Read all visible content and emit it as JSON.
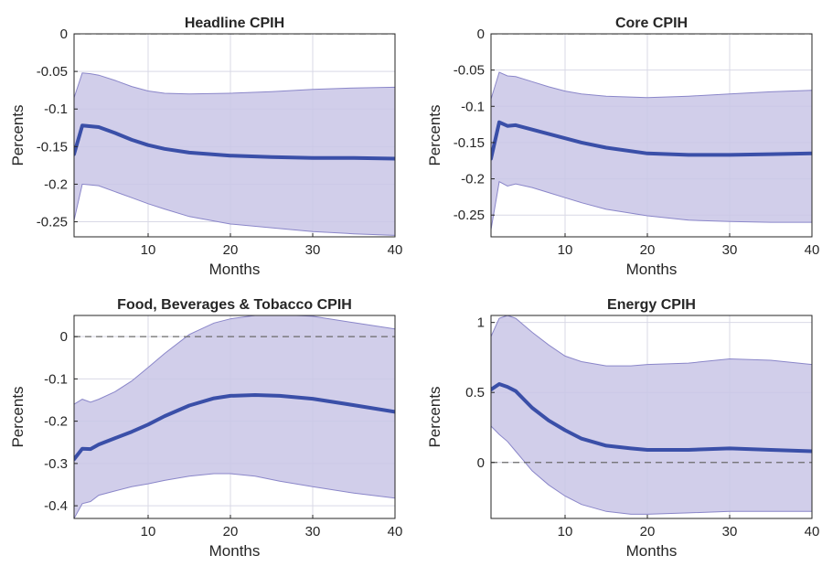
{
  "chart_data": [
    {
      "type": "line",
      "title": "Headline CPIH",
      "xlabel": "Months",
      "ylabel": "Percents",
      "xlim": [
        1,
        40
      ],
      "ylim": [
        -0.27,
        0
      ],
      "xticks": [
        10,
        20,
        30,
        40
      ],
      "xtick_labels": [
        "10",
        "20",
        "30",
        "40"
      ],
      "yticks": [
        0,
        -0.05,
        -0.1,
        -0.15,
        -0.2,
        -0.25
      ],
      "ytick_labels": [
        "0",
        "-0.05",
        "-0.1",
        "-0.15",
        "-0.2",
        "-0.25"
      ],
      "grid": true,
      "reference_line": 0,
      "x": [
        1,
        2,
        3,
        4,
        6,
        8,
        10,
        12,
        15,
        20,
        25,
        30,
        35,
        40
      ],
      "series": [
        {
          "role": "median",
          "values": [
            -0.16,
            -0.122,
            -0.123,
            -0.124,
            -0.132,
            -0.141,
            -0.148,
            -0.153,
            -0.158,
            -0.162,
            -0.164,
            -0.165,
            -0.165,
            -0.166
          ]
        },
        {
          "role": "upper",
          "values": [
            -0.085,
            -0.052,
            -0.053,
            -0.055,
            -0.062,
            -0.07,
            -0.076,
            -0.079,
            -0.08,
            -0.079,
            -0.077,
            -0.074,
            -0.072,
            -0.071
          ]
        },
        {
          "role": "lower",
          "values": [
            -0.248,
            -0.2,
            -0.201,
            -0.202,
            -0.21,
            -0.218,
            -0.226,
            -0.233,
            -0.243,
            -0.253,
            -0.258,
            -0.263,
            -0.266,
            -0.268
          ]
        }
      ]
    },
    {
      "type": "line",
      "title": "Core CPIH",
      "xlabel": "Months",
      "ylabel": "Percents",
      "xlim": [
        1,
        40
      ],
      "ylim": [
        -0.28,
        0
      ],
      "xticks": [
        10,
        20,
        30,
        40
      ],
      "xtick_labels": [
        "10",
        "20",
        "30",
        "40"
      ],
      "yticks": [
        0,
        -0.05,
        -0.1,
        -0.15,
        -0.2,
        -0.25
      ],
      "ytick_labels": [
        "0",
        "-0.05",
        "-0.1",
        "-0.15",
        "-0.2",
        "-0.25"
      ],
      "grid": true,
      "reference_line": 0,
      "x": [
        1,
        2,
        3,
        4,
        6,
        8,
        10,
        12,
        15,
        20,
        25,
        30,
        35,
        40
      ],
      "series": [
        {
          "role": "median",
          "values": [
            -0.172,
            -0.122,
            -0.127,
            -0.126,
            -0.132,
            -0.138,
            -0.144,
            -0.15,
            -0.157,
            -0.165,
            -0.167,
            -0.167,
            -0.166,
            -0.165
          ]
        },
        {
          "role": "upper",
          "values": [
            -0.09,
            -0.053,
            -0.058,
            -0.059,
            -0.066,
            -0.073,
            -0.079,
            -0.083,
            -0.086,
            -0.088,
            -0.086,
            -0.083,
            -0.08,
            -0.078
          ]
        },
        {
          "role": "lower",
          "values": [
            -0.27,
            -0.204,
            -0.21,
            -0.207,
            -0.212,
            -0.219,
            -0.226,
            -0.233,
            -0.242,
            -0.251,
            -0.257,
            -0.259,
            -0.26,
            -0.26
          ]
        }
      ]
    },
    {
      "type": "line",
      "title": "Food, Beverages & Tobacco CPIH",
      "xlabel": "Months",
      "ylabel": "Percents",
      "xlim": [
        1,
        40
      ],
      "ylim": [
        -0.43,
        0.05
      ],
      "xticks": [
        10,
        20,
        30,
        40
      ],
      "xtick_labels": [
        "10",
        "20",
        "30",
        "40"
      ],
      "yticks": [
        0,
        -0.1,
        -0.2,
        -0.3,
        -0.4
      ],
      "ytick_labels": [
        "0",
        "-0.1",
        "-0.2",
        "-0.3",
        "-0.4"
      ],
      "grid": true,
      "reference_line": 0,
      "x": [
        1,
        2,
        3,
        4,
        6,
        8,
        10,
        12,
        15,
        18,
        20,
        23,
        26,
        30,
        35,
        40
      ],
      "series": [
        {
          "role": "median",
          "values": [
            -0.29,
            -0.265,
            -0.266,
            -0.255,
            -0.24,
            -0.225,
            -0.208,
            -0.188,
            -0.163,
            -0.146,
            -0.14,
            -0.138,
            -0.14,
            -0.147,
            -0.162,
            -0.178
          ]
        },
        {
          "role": "upper",
          "values": [
            -0.16,
            -0.148,
            -0.155,
            -0.148,
            -0.13,
            -0.105,
            -0.073,
            -0.04,
            0.005,
            0.032,
            0.042,
            0.05,
            0.052,
            0.048,
            0.033,
            0.018
          ]
        },
        {
          "role": "lower",
          "values": [
            -0.43,
            -0.395,
            -0.39,
            -0.375,
            -0.365,
            -0.355,
            -0.348,
            -0.34,
            -0.33,
            -0.324,
            -0.324,
            -0.33,
            -0.342,
            -0.355,
            -0.37,
            -0.382
          ]
        }
      ]
    },
    {
      "type": "line",
      "title": "Energy CPIH",
      "xlabel": "Months",
      "ylabel": "Percents",
      "xlim": [
        1,
        40
      ],
      "ylim": [
        -0.4,
        1.05
      ],
      "xticks": [
        10,
        20,
        30,
        40
      ],
      "xtick_labels": [
        "10",
        "20",
        "30",
        "40"
      ],
      "yticks": [
        1,
        0.5,
        0
      ],
      "ytick_labels": [
        "1",
        "0.5",
        "0"
      ],
      "grid": true,
      "reference_line": 0,
      "x": [
        1,
        2,
        3,
        4,
        5,
        6,
        8,
        10,
        12,
        15,
        18,
        20,
        25,
        30,
        35,
        40
      ],
      "series": [
        {
          "role": "median",
          "values": [
            0.52,
            0.56,
            0.54,
            0.51,
            0.45,
            0.39,
            0.3,
            0.23,
            0.17,
            0.12,
            0.1,
            0.09,
            0.09,
            0.1,
            0.09,
            0.08
          ]
        },
        {
          "role": "upper",
          "values": [
            0.9,
            1.03,
            1.05,
            1.03,
            0.98,
            0.93,
            0.84,
            0.76,
            0.72,
            0.69,
            0.69,
            0.7,
            0.71,
            0.74,
            0.73,
            0.7
          ]
        },
        {
          "role": "lower",
          "values": [
            0.26,
            0.2,
            0.15,
            0.08,
            0.01,
            -0.06,
            -0.16,
            -0.24,
            -0.3,
            -0.35,
            -0.37,
            -0.37,
            -0.36,
            -0.35,
            -0.35,
            -0.35
          ]
        }
      ]
    }
  ]
}
